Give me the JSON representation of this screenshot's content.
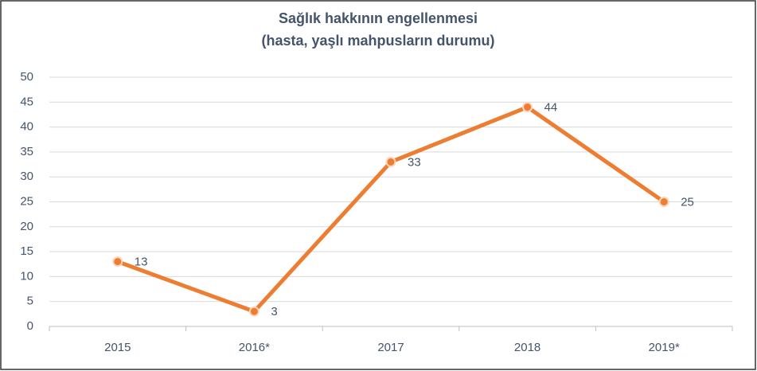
{
  "chart_data": {
    "type": "line",
    "title": "Sağlık hakkının engellenmesi",
    "subtitle": "(hasta, yaşlı mahpusların durumu)",
    "categories": [
      "2015",
      "2016*",
      "2017",
      "2018",
      "2019*"
    ],
    "series": [
      {
        "name": "Sağlık hakkının engellenmesi",
        "color": "#ed7d31",
        "values": [
          13,
          3,
          33,
          44,
          25
        ]
      }
    ],
    "ylim": [
      0,
      50
    ],
    "yticks": [
      0,
      5,
      10,
      15,
      20,
      25,
      30,
      35,
      40,
      45,
      50
    ],
    "grid": true
  }
}
